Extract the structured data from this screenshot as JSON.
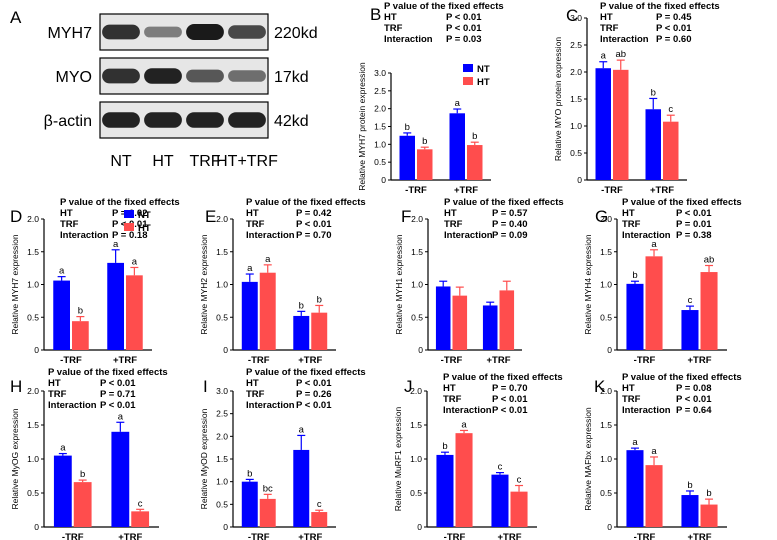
{
  "colors": {
    "NT": "#0000ff",
    "HT": "#ff4d4d",
    "axis": "#000000",
    "band": "#1a1a1a"
  },
  "blot": {
    "label": "A",
    "rows": [
      {
        "name": "MYH7",
        "size": "220kd",
        "bands": [
          0.85,
          0.35,
          1.0,
          0.7
        ]
      },
      {
        "name": "MYO",
        "size": "17kd",
        "bands": [
          0.85,
          0.95,
          0.6,
          0.45
        ]
      },
      {
        "name": "β-actin",
        "size": "42kd",
        "bands": [
          0.95,
          0.95,
          0.95,
          0.95
        ]
      }
    ],
    "lanes": [
      "NT",
      "HT",
      "TRF",
      "HT+TRF"
    ]
  },
  "legend": {
    "nt": "NT",
    "ht": "HT"
  },
  "chart_data": [
    {
      "label": "B",
      "type": "bar",
      "categories": [
        "-TRF",
        "+TRF"
      ],
      "ylabel": "Relative MYH7 protein expression",
      "ylim": [
        0,
        3.0
      ],
      "yticks": [
        0,
        0.5,
        1.0,
        1.5,
        2.0,
        2.5,
        3.0
      ],
      "stats": {
        "title": "P value of the fixed effects",
        "rows": [
          [
            "HT",
            "P < 0.01"
          ],
          [
            "TRF",
            "P < 0.01"
          ],
          [
            "Interaction",
            "P = 0.03"
          ]
        ]
      },
      "series": [
        {
          "name": "NT",
          "values": [
            1.24,
            1.87
          ],
          "errors": [
            0.08,
            0.12
          ],
          "letters": [
            "b",
            "a"
          ]
        },
        {
          "name": "HT",
          "values": [
            0.86,
            0.98
          ],
          "errors": [
            0.06,
            0.08
          ],
          "letters": [
            "b",
            "b"
          ]
        }
      ]
    },
    {
      "label": "C",
      "type": "bar",
      "categories": [
        "-TRF",
        "+TRF"
      ],
      "ylabel": "Relative MYO protein expression",
      "ylim": [
        0,
        3.0
      ],
      "yticks": [
        0,
        0.5,
        1.0,
        1.5,
        2.0,
        2.5,
        3.0
      ],
      "stats": {
        "title": "P value of the fixed effects",
        "rows": [
          [
            "HT",
            "P = 0.45"
          ],
          [
            "TRF",
            "P < 0.01"
          ],
          [
            "Interaction",
            "P = 0.60"
          ]
        ]
      },
      "series": [
        {
          "name": "NT",
          "values": [
            2.07,
            1.31
          ],
          "errors": [
            0.12,
            0.2
          ],
          "letters": [
            "a",
            "b"
          ]
        },
        {
          "name": "HT",
          "values": [
            2.04,
            1.08
          ],
          "errors": [
            0.18,
            0.12
          ],
          "letters": [
            "ab",
            "c"
          ]
        }
      ]
    },
    {
      "label": "D",
      "type": "bar",
      "categories": [
        "-TRF",
        "+TRF"
      ],
      "ylabel": "Relative MYH7 expression",
      "ylim": [
        0,
        2.0
      ],
      "yticks": [
        0,
        0.5,
        1.0,
        1.5,
        2.0
      ],
      "stats": {
        "title": "P value of the fixed effects",
        "rows": [
          [
            "HT",
            "P = 0.02"
          ],
          [
            "TRF",
            "P < 0.01"
          ],
          [
            "Interaction",
            "P = 0.18"
          ]
        ]
      },
      "series": [
        {
          "name": "NT",
          "values": [
            1.06,
            1.33
          ],
          "errors": [
            0.06,
            0.2
          ],
          "letters": [
            "a",
            "a"
          ]
        },
        {
          "name": "HT",
          "values": [
            0.44,
            1.14
          ],
          "errors": [
            0.07,
            0.12
          ],
          "letters": [
            "b",
            "a"
          ]
        }
      ]
    },
    {
      "label": "E",
      "type": "bar",
      "categories": [
        "-TRF",
        "+TRF"
      ],
      "ylabel": "Relative MYH2 expression",
      "ylim": [
        0,
        2.0
      ],
      "yticks": [
        0,
        0.5,
        1.0,
        1.5,
        2.0
      ],
      "stats": {
        "title": "P value of the fixed effects",
        "rows": [
          [
            "HT",
            "P = 0.42"
          ],
          [
            "TRF",
            "P < 0.01"
          ],
          [
            "Interaction",
            "P = 0.70"
          ]
        ]
      },
      "series": [
        {
          "name": "NT",
          "values": [
            1.04,
            0.52
          ],
          "errors": [
            0.12,
            0.07
          ],
          "letters": [
            "a",
            "b"
          ]
        },
        {
          "name": "HT",
          "values": [
            1.18,
            0.57
          ],
          "errors": [
            0.12,
            0.11
          ],
          "letters": [
            "a",
            "b"
          ]
        }
      ]
    },
    {
      "label": "F",
      "type": "bar",
      "categories": [
        "-TRF",
        "+TRF"
      ],
      "ylabel": "Relative MYH1 expression",
      "ylim": [
        0,
        2.0
      ],
      "yticks": [
        0,
        0.5,
        1.0,
        1.5,
        2.0
      ],
      "stats": {
        "title": "P value of the fixed effects",
        "rows": [
          [
            "HT",
            "P = 0.57"
          ],
          [
            "TRF",
            "P = 0.40"
          ],
          [
            "Interaction",
            "P = 0.09"
          ]
        ]
      },
      "series": [
        {
          "name": "NT",
          "values": [
            0.97,
            0.68
          ],
          "errors": [
            0.08,
            0.05
          ],
          "letters": [
            "",
            ""
          ]
        },
        {
          "name": "HT",
          "values": [
            0.83,
            0.91
          ],
          "errors": [
            0.13,
            0.14
          ],
          "letters": [
            "",
            ""
          ]
        }
      ]
    },
    {
      "label": "G",
      "type": "bar",
      "categories": [
        "-TRF",
        "+TRF"
      ],
      "ylabel": "Relative MYH4 expression",
      "ylim": [
        0,
        2.0
      ],
      "yticks": [
        0,
        0.5,
        1.0,
        1.5,
        2.0
      ],
      "stats": {
        "title": "P value of the fixed effects",
        "rows": [
          [
            "HT",
            "P < 0.01"
          ],
          [
            "TRF",
            "P = 0.01"
          ],
          [
            "Interaction",
            "P = 0.38"
          ]
        ]
      },
      "series": [
        {
          "name": "NT",
          "values": [
            1.01,
            0.61
          ],
          "errors": [
            0.04,
            0.06
          ],
          "letters": [
            "b",
            "c"
          ]
        },
        {
          "name": "HT",
          "values": [
            1.43,
            1.19
          ],
          "errors": [
            0.1,
            0.1
          ],
          "letters": [
            "a",
            "ab"
          ]
        }
      ]
    },
    {
      "label": "H",
      "type": "bar",
      "categories": [
        "-TRF",
        "+TRF"
      ],
      "ylabel": "Relative MyOG expression",
      "ylim": [
        0,
        2.0
      ],
      "yticks": [
        0,
        0.5,
        1.0,
        1.5,
        2.0
      ],
      "stats": {
        "title": "P value of the fixed effects",
        "rows": [
          [
            "HT",
            "P < 0.01"
          ],
          [
            "TRF",
            "P = 0.71"
          ],
          [
            "Interaction",
            "P < 0.01"
          ]
        ]
      },
      "series": [
        {
          "name": "NT",
          "values": [
            1.05,
            1.4
          ],
          "errors": [
            0.03,
            0.14
          ],
          "letters": [
            "a",
            "a"
          ]
        },
        {
          "name": "HT",
          "values": [
            0.66,
            0.23
          ],
          "errors": [
            0.03,
            0.03
          ],
          "letters": [
            "b",
            "c"
          ]
        }
      ]
    },
    {
      "label": "I",
      "type": "bar",
      "categories": [
        "-TRF",
        "+TRF"
      ],
      "ylabel": "Relative MyOD expression",
      "ylim": [
        0,
        3.0
      ],
      "yticks": [
        0,
        0.5,
        1.0,
        1.5,
        2.0,
        2.5,
        3.0
      ],
      "stats": {
        "title": "P value of the fixed effects",
        "rows": [
          [
            "HT",
            "P < 0.01"
          ],
          [
            "TRF",
            "P = 0.26"
          ],
          [
            "Interaction",
            "P < 0.01"
          ]
        ]
      },
      "series": [
        {
          "name": "NT",
          "values": [
            1.0,
            1.7
          ],
          "errors": [
            0.05,
            0.32
          ],
          "letters": [
            "b",
            "a"
          ]
        },
        {
          "name": "HT",
          "values": [
            0.62,
            0.33
          ],
          "errors": [
            0.1,
            0.04
          ],
          "letters": [
            "bc",
            "c"
          ]
        }
      ]
    },
    {
      "label": "J",
      "type": "bar",
      "categories": [
        "-TRF",
        "+TRF"
      ],
      "ylabel": "Relative MuRF1 expression",
      "ylim": [
        0,
        2.0
      ],
      "yticks": [
        0,
        0.5,
        1.0,
        1.5,
        2.0
      ],
      "stats": {
        "title": "P value of the fixed effects",
        "rows": [
          [
            "HT",
            "P = 0.70"
          ],
          [
            "TRF",
            "P < 0.01"
          ],
          [
            "Interaction",
            "P < 0.01"
          ]
        ]
      },
      "series": [
        {
          "name": "NT",
          "values": [
            1.06,
            0.77
          ],
          "errors": [
            0.04,
            0.03
          ],
          "letters": [
            "b",
            "c"
          ]
        },
        {
          "name": "HT",
          "values": [
            1.38,
            0.52
          ],
          "errors": [
            0.04,
            0.09
          ],
          "letters": [
            "a",
            "c"
          ]
        }
      ]
    },
    {
      "label": "K",
      "type": "bar",
      "categories": [
        "-TRF",
        "+TRF"
      ],
      "ylabel": "Relative MAFbx expression",
      "ylim": [
        0,
        2.0
      ],
      "yticks": [
        0,
        0.5,
        1.0,
        1.5,
        2.0
      ],
      "stats": {
        "title": "P value of the fixed effects",
        "rows": [
          [
            "HT",
            "P = 0.08"
          ],
          [
            "TRF",
            "P < 0.01"
          ],
          [
            "Interaction",
            "P = 0.64"
          ]
        ]
      },
      "series": [
        {
          "name": "NT",
          "values": [
            1.13,
            0.47
          ],
          "errors": [
            0.03,
            0.06
          ],
          "letters": [
            "a",
            "b"
          ]
        },
        {
          "name": "HT",
          "values": [
            0.91,
            0.33
          ],
          "errors": [
            0.12,
            0.08
          ],
          "letters": [
            "a",
            "b"
          ]
        }
      ]
    }
  ]
}
